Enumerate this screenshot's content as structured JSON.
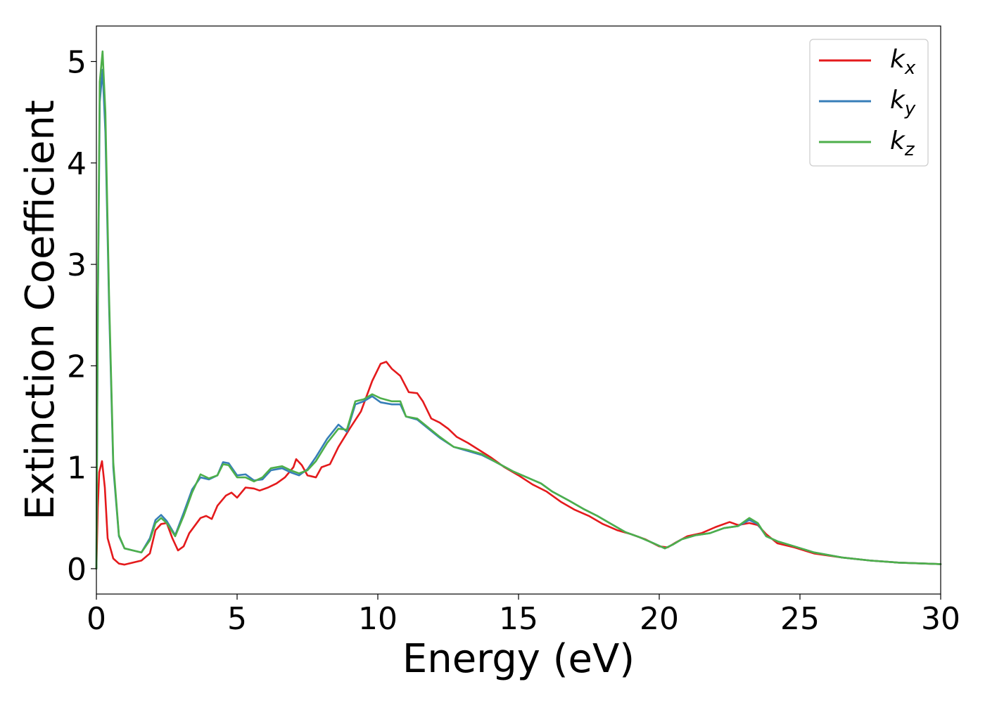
{
  "chart_data": {
    "type": "line",
    "title": "",
    "xlabel": "Energy (eV)",
    "ylabel": "Extinction Coefficient",
    "xlim": [
      0,
      30
    ],
    "ylim": [
      -0.25,
      5.35
    ],
    "xticks": [
      "0",
      "5",
      "10",
      "15",
      "20",
      "25",
      "30"
    ],
    "yticks": [
      "0",
      "1",
      "2",
      "3",
      "4",
      "5"
    ],
    "grid": false,
    "legend_position": "top-right",
    "series": [
      {
        "name": "k",
        "sub": "x",
        "color": "#e41a1c",
        "points": [
          [
            0,
            0
          ],
          [
            0.05,
            0.6
          ],
          [
            0.1,
            0.95
          ],
          [
            0.2,
            1.06
          ],
          [
            0.3,
            0.8
          ],
          [
            0.4,
            0.3
          ],
          [
            0.6,
            0.1
          ],
          [
            0.8,
            0.05
          ],
          [
            1.0,
            0.04
          ],
          [
            1.3,
            0.06
          ],
          [
            1.6,
            0.08
          ],
          [
            1.9,
            0.15
          ],
          [
            2.1,
            0.38
          ],
          [
            2.3,
            0.44
          ],
          [
            2.5,
            0.45
          ],
          [
            2.7,
            0.3
          ],
          [
            2.9,
            0.18
          ],
          [
            3.1,
            0.22
          ],
          [
            3.3,
            0.35
          ],
          [
            3.7,
            0.5
          ],
          [
            3.9,
            0.52
          ],
          [
            4.1,
            0.49
          ],
          [
            4.3,
            0.62
          ],
          [
            4.6,
            0.72
          ],
          [
            4.8,
            0.75
          ],
          [
            5.0,
            0.7
          ],
          [
            5.3,
            0.8
          ],
          [
            5.6,
            0.79
          ],
          [
            5.8,
            0.77
          ],
          [
            6.1,
            0.8
          ],
          [
            6.4,
            0.84
          ],
          [
            6.7,
            0.9
          ],
          [
            7.0,
            1.0
          ],
          [
            7.1,
            1.08
          ],
          [
            7.3,
            1.02
          ],
          [
            7.5,
            0.92
          ],
          [
            7.8,
            0.9
          ],
          [
            8.0,
            1.0
          ],
          [
            8.3,
            1.03
          ],
          [
            8.6,
            1.2
          ],
          [
            9.0,
            1.38
          ],
          [
            9.4,
            1.55
          ],
          [
            9.8,
            1.85
          ],
          [
            10.1,
            2.02
          ],
          [
            10.3,
            2.04
          ],
          [
            10.5,
            1.97
          ],
          [
            10.8,
            1.9
          ],
          [
            11.1,
            1.74
          ],
          [
            11.4,
            1.73
          ],
          [
            11.6,
            1.65
          ],
          [
            11.9,
            1.48
          ],
          [
            12.2,
            1.44
          ],
          [
            12.5,
            1.38
          ],
          [
            12.8,
            1.3
          ],
          [
            13.2,
            1.24
          ],
          [
            13.6,
            1.17
          ],
          [
            14.0,
            1.1
          ],
          [
            14.5,
            1.0
          ],
          [
            15.0,
            0.92
          ],
          [
            15.5,
            0.83
          ],
          [
            16.0,
            0.76
          ],
          [
            16.5,
            0.66
          ],
          [
            17.0,
            0.58
          ],
          [
            17.5,
            0.52
          ],
          [
            18.0,
            0.44
          ],
          [
            18.5,
            0.38
          ],
          [
            19.0,
            0.34
          ],
          [
            19.5,
            0.29
          ],
          [
            20.0,
            0.22
          ],
          [
            20.3,
            0.21
          ],
          [
            20.6,
            0.26
          ],
          [
            21.0,
            0.32
          ],
          [
            21.5,
            0.35
          ],
          [
            22.0,
            0.41
          ],
          [
            22.5,
            0.46
          ],
          [
            22.8,
            0.43
          ],
          [
            23.2,
            0.45
          ],
          [
            23.5,
            0.43
          ],
          [
            23.8,
            0.34
          ],
          [
            24.2,
            0.25
          ],
          [
            24.8,
            0.21
          ],
          [
            25.5,
            0.15
          ],
          [
            26.5,
            0.11
          ],
          [
            27.5,
            0.08
          ],
          [
            28.5,
            0.06
          ],
          [
            30.0,
            0.045
          ]
        ]
      },
      {
        "name": "k",
        "sub": "y",
        "color": "#377eb8",
        "points": [
          [
            0,
            0
          ],
          [
            0.05,
            2.5
          ],
          [
            0.12,
            4.6
          ],
          [
            0.22,
            4.92
          ],
          [
            0.32,
            4.3
          ],
          [
            0.45,
            2.6
          ],
          [
            0.6,
            1.0
          ],
          [
            0.8,
            0.32
          ],
          [
            1.0,
            0.2
          ],
          [
            1.3,
            0.18
          ],
          [
            1.6,
            0.16
          ],
          [
            1.9,
            0.3
          ],
          [
            2.1,
            0.48
          ],
          [
            2.3,
            0.53
          ],
          [
            2.5,
            0.47
          ],
          [
            2.8,
            0.33
          ],
          [
            3.1,
            0.55
          ],
          [
            3.4,
            0.78
          ],
          [
            3.7,
            0.9
          ],
          [
            4.0,
            0.88
          ],
          [
            4.3,
            0.92
          ],
          [
            4.5,
            1.05
          ],
          [
            4.7,
            1.04
          ],
          [
            5.0,
            0.92
          ],
          [
            5.3,
            0.93
          ],
          [
            5.6,
            0.87
          ],
          [
            5.9,
            0.88
          ],
          [
            6.2,
            0.97
          ],
          [
            6.6,
            0.99
          ],
          [
            6.9,
            0.95
          ],
          [
            7.2,
            0.92
          ],
          [
            7.5,
            0.98
          ],
          [
            7.8,
            1.1
          ],
          [
            8.2,
            1.28
          ],
          [
            8.6,
            1.42
          ],
          [
            8.9,
            1.35
          ],
          [
            9.2,
            1.62
          ],
          [
            9.5,
            1.65
          ],
          [
            9.8,
            1.7
          ],
          [
            10.1,
            1.64
          ],
          [
            10.5,
            1.62
          ],
          [
            10.8,
            1.62
          ],
          [
            11.0,
            1.5
          ],
          [
            11.4,
            1.47
          ],
          [
            11.8,
            1.38
          ],
          [
            12.2,
            1.29
          ],
          [
            12.7,
            1.2
          ],
          [
            13.2,
            1.16
          ],
          [
            13.7,
            1.12
          ],
          [
            14.2,
            1.05
          ],
          [
            14.8,
            0.96
          ],
          [
            15.3,
            0.9
          ],
          [
            15.8,
            0.84
          ],
          [
            16.2,
            0.76
          ],
          [
            16.8,
            0.67
          ],
          [
            17.3,
            0.59
          ],
          [
            17.8,
            0.52
          ],
          [
            18.3,
            0.44
          ],
          [
            18.8,
            0.36
          ],
          [
            19.3,
            0.31
          ],
          [
            19.8,
            0.25
          ],
          [
            20.2,
            0.2
          ],
          [
            20.5,
            0.24
          ],
          [
            20.8,
            0.29
          ],
          [
            21.3,
            0.33
          ],
          [
            21.8,
            0.35
          ],
          [
            22.3,
            0.4
          ],
          [
            22.8,
            0.42
          ],
          [
            23.2,
            0.48
          ],
          [
            23.5,
            0.44
          ],
          [
            23.8,
            0.32
          ],
          [
            24.2,
            0.27
          ],
          [
            24.8,
            0.22
          ],
          [
            25.5,
            0.16
          ],
          [
            26.5,
            0.11
          ],
          [
            27.5,
            0.08
          ],
          [
            28.5,
            0.06
          ],
          [
            30.0,
            0.045
          ]
        ]
      },
      {
        "name": "k",
        "sub": "z",
        "color": "#4daf4a",
        "points": [
          [
            0,
            0
          ],
          [
            0.05,
            2.6
          ],
          [
            0.12,
            4.8
          ],
          [
            0.22,
            5.1
          ],
          [
            0.32,
            4.5
          ],
          [
            0.45,
            2.7
          ],
          [
            0.6,
            1.05
          ],
          [
            0.8,
            0.33
          ],
          [
            1.0,
            0.2
          ],
          [
            1.3,
            0.18
          ],
          [
            1.6,
            0.16
          ],
          [
            1.9,
            0.28
          ],
          [
            2.1,
            0.45
          ],
          [
            2.3,
            0.5
          ],
          [
            2.5,
            0.45
          ],
          [
            2.8,
            0.32
          ],
          [
            3.1,
            0.52
          ],
          [
            3.4,
            0.75
          ],
          [
            3.7,
            0.93
          ],
          [
            4.0,
            0.89
          ],
          [
            4.3,
            0.92
          ],
          [
            4.5,
            1.03
          ],
          [
            4.7,
            1.02
          ],
          [
            5.0,
            0.9
          ],
          [
            5.3,
            0.9
          ],
          [
            5.6,
            0.86
          ],
          [
            5.9,
            0.9
          ],
          [
            6.2,
            0.99
          ],
          [
            6.6,
            1.01
          ],
          [
            6.9,
            0.97
          ],
          [
            7.2,
            0.94
          ],
          [
            7.5,
            0.97
          ],
          [
            7.8,
            1.06
          ],
          [
            8.2,
            1.24
          ],
          [
            8.6,
            1.38
          ],
          [
            8.9,
            1.37
          ],
          [
            9.2,
            1.65
          ],
          [
            9.5,
            1.67
          ],
          [
            9.8,
            1.72
          ],
          [
            10.1,
            1.68
          ],
          [
            10.5,
            1.65
          ],
          [
            10.8,
            1.65
          ],
          [
            11.0,
            1.5
          ],
          [
            11.4,
            1.48
          ],
          [
            11.8,
            1.39
          ],
          [
            12.2,
            1.3
          ],
          [
            12.7,
            1.2
          ],
          [
            13.2,
            1.17
          ],
          [
            13.7,
            1.13
          ],
          [
            14.2,
            1.05
          ],
          [
            14.8,
            0.96
          ],
          [
            15.3,
            0.9
          ],
          [
            15.8,
            0.84
          ],
          [
            16.2,
            0.76
          ],
          [
            16.8,
            0.67
          ],
          [
            17.3,
            0.59
          ],
          [
            17.8,
            0.52
          ],
          [
            18.3,
            0.44
          ],
          [
            18.8,
            0.36
          ],
          [
            19.3,
            0.31
          ],
          [
            19.8,
            0.25
          ],
          [
            20.2,
            0.2
          ],
          [
            20.5,
            0.24
          ],
          [
            20.8,
            0.29
          ],
          [
            21.3,
            0.33
          ],
          [
            21.8,
            0.35
          ],
          [
            22.3,
            0.4
          ],
          [
            22.8,
            0.42
          ],
          [
            23.2,
            0.5
          ],
          [
            23.5,
            0.45
          ],
          [
            23.8,
            0.32
          ],
          [
            24.2,
            0.27
          ],
          [
            24.8,
            0.22
          ],
          [
            25.5,
            0.16
          ],
          [
            26.5,
            0.11
          ],
          [
            27.5,
            0.08
          ],
          [
            28.5,
            0.06
          ],
          [
            30.0,
            0.045
          ]
        ]
      }
    ]
  }
}
